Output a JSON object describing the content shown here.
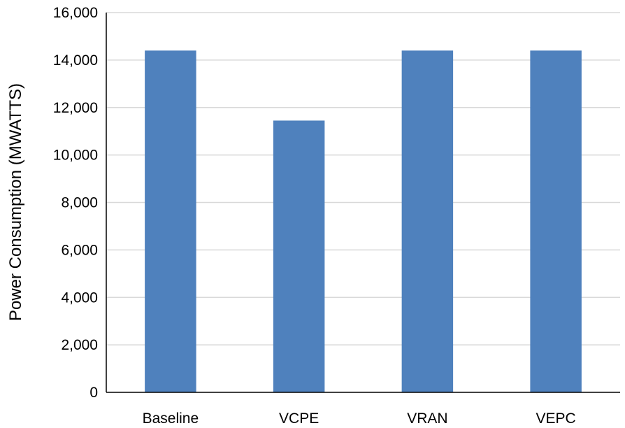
{
  "chart_data": {
    "type": "bar",
    "title": "",
    "xlabel": "",
    "ylabel": "Power Consumption (MWATTS)",
    "categories": [
      "Baseline",
      "VCPE",
      "VRAN",
      "VEPC"
    ],
    "values": [
      14400,
      11450,
      14400,
      14400
    ],
    "ylim": [
      0,
      16000
    ],
    "yticks": [
      0,
      2000,
      4000,
      6000,
      8000,
      10000,
      12000,
      14000,
      16000
    ],
    "ytick_labels": [
      "0",
      "2,000",
      "4,000",
      "6,000",
      "8,000",
      "10,000",
      "12,000",
      "14,000",
      "16,000"
    ],
    "grid": true,
    "legend": "none",
    "colors": {
      "bar": "#4f81bd",
      "grid": "#d9d9d9",
      "axis": "#000000"
    }
  }
}
